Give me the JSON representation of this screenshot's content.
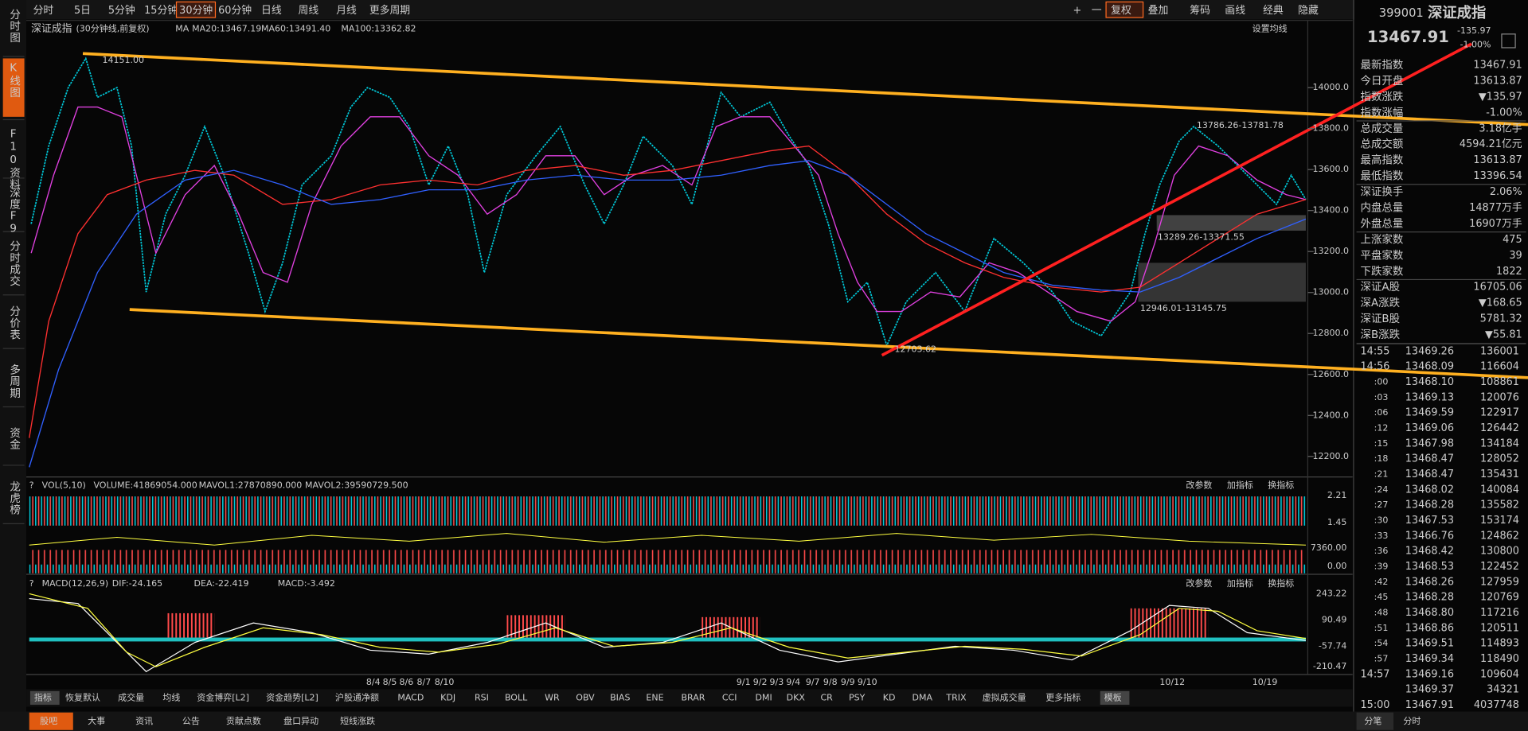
{
  "toolbar": {
    "periods": [
      "分时",
      "5日",
      "5分钟",
      "15分钟",
      "30分钟",
      "60分钟",
      "日线",
      "周线",
      "月线",
      "更多周期"
    ],
    "tools": [
      "+",
      "一",
      "复权",
      "叠加",
      "筹码",
      "画线",
      "经典",
      "隐藏"
    ]
  },
  "side_tabs": [
    "分时图",
    "K线图",
    "F10资料",
    "深度F9",
    "分时成交",
    "分价表",
    "多周期",
    "资金",
    "龙虎榜"
  ],
  "kline": {
    "name": "深证成指",
    "period": "(30分钟线,前复权)",
    "ma_label": "MA",
    "ma": [
      "MA20:13467.19",
      "MA60:13491.40",
      "MA100:13362.82"
    ],
    "settings": "设置均线",
    "annotations": [
      "14151.00",
      "13786.26-13781.78",
      "13289.26-13371.55",
      "12946.01-13145.75",
      "12703.62"
    ],
    "price_ticks": [
      "14000.0",
      "13800.0",
      "13600.0",
      "13400.0",
      "13200.0",
      "13000.0",
      "12800.0",
      "12600.0",
      "12400.0",
      "12200.0"
    ]
  },
  "volume": {
    "name": "VOL(5,10)",
    "values": [
      "VOLUME:41869054.000",
      "MAVOL1:27870890.000",
      "MAVOL2:39590729.500"
    ],
    "ticks": [
      "2.21",
      "1.45",
      "7360.00",
      "0.00"
    ]
  },
  "macd": {
    "name": "MACD(12,26,9)",
    "values": [
      "DIF:-24.165",
      "DEA:-22.419",
      "MACD:-3.492"
    ],
    "ticks": [
      "243.22",
      "90.49",
      "-57.74",
      "-210.47"
    ]
  },
  "panel_buttons": [
    "改参数",
    "加指标",
    "换指标"
  ],
  "dates": [
    "8/4",
    "8/5",
    "8/6",
    "8/7",
    "8/10",
    "9/1",
    "9/2",
    "9/3",
    "9/4",
    "9/7",
    "9/8",
    "9/9",
    "9/10",
    "10/12",
    "10/19"
  ],
  "indicator_tabs": [
    "指标",
    "恢复默认",
    "成交量",
    "均线",
    "资金博弈[L2]",
    "资金趋势[L2]",
    "沪股通净额",
    "MACD",
    "KDJ",
    "RSI",
    "BOLL",
    "WR",
    "OBV",
    "BIAS",
    "ENE",
    "BRAR",
    "CCI",
    "DMI",
    "DKX",
    "CR",
    "PSY",
    "KD",
    "DMA",
    "TRIX",
    "虚拟成交量",
    "更多指标",
    "模板"
  ],
  "bottom_tabs": [
    "股吧",
    "大事",
    "资讯",
    "公告",
    "贡献点数",
    "盘口异动",
    "短线涨跌"
  ],
  "quote": {
    "code": "399001",
    "name": "深证成指",
    "price": "13467.91",
    "change": "-135.97",
    "percent": "-1.00%",
    "rows": [
      [
        "最新指数",
        "13467.91"
      ],
      [
        "今日开盘",
        "13613.87"
      ],
      [
        "指数涨跌",
        "▼135.97"
      ],
      [
        "指数涨幅",
        "-1.00%"
      ],
      [
        "总成交量",
        "3.18亿手"
      ],
      [
        "总成交额",
        "4594.21亿元"
      ],
      [
        "最高指数",
        "13613.87"
      ],
      [
        "最低指数",
        "13396.54"
      ],
      [
        "深证换手",
        "2.06%"
      ],
      [
        "内盘总量",
        "14877万手"
      ],
      [
        "外盘总量",
        "16907万手"
      ],
      [
        "上涨家数",
        "475"
      ],
      [
        "平盘家数",
        "39"
      ],
      [
        "下跌家数",
        "1822"
      ],
      [
        "深证A股",
        "16705.06"
      ],
      [
        "深A涨跌",
        "▼168.65"
      ],
      [
        "深证B股",
        "5781.32"
      ],
      [
        "深B涨跌",
        "▼55.81"
      ]
    ]
  },
  "ticks": [
    [
      "14:55",
      "13469.26",
      "136001"
    ],
    [
      "14:56",
      "13468.09",
      "116604"
    ],
    [
      ":00",
      "13468.10",
      "108861"
    ],
    [
      ":03",
      "13469.13",
      "120076"
    ],
    [
      ":06",
      "13469.59",
      "122917"
    ],
    [
      ":12",
      "13469.06",
      "126442"
    ],
    [
      ":15",
      "13467.98",
      "134184"
    ],
    [
      ":18",
      "13468.47",
      "128052"
    ],
    [
      ":21",
      "13468.47",
      "135431"
    ],
    [
      ":24",
      "13468.02",
      "140084"
    ],
    [
      ":27",
      "13468.28",
      "135582"
    ],
    [
      ":30",
      "13467.53",
      "153174"
    ],
    [
      ":33",
      "13466.76",
      "124862"
    ],
    [
      ":36",
      "13468.42",
      "130800"
    ],
    [
      ":39",
      "13468.53",
      "122452"
    ],
    [
      ":42",
      "13468.26",
      "127959"
    ],
    [
      ":45",
      "13468.28",
      "120769"
    ],
    [
      ":48",
      "13468.80",
      "117216"
    ],
    [
      ":51",
      "13468.86",
      "120511"
    ],
    [
      ":54",
      "13469.51",
      "114893"
    ],
    [
      ":57",
      "13469.34",
      "118490"
    ],
    [
      "14:57",
      "13469.16",
      "109604"
    ],
    [
      "",
      "13469.37",
      "34321"
    ],
    [
      "15:00",
      "13467.91",
      "4037748"
    ]
  ],
  "ticks_tabs": [
    "分笔",
    "分时"
  ]
}
